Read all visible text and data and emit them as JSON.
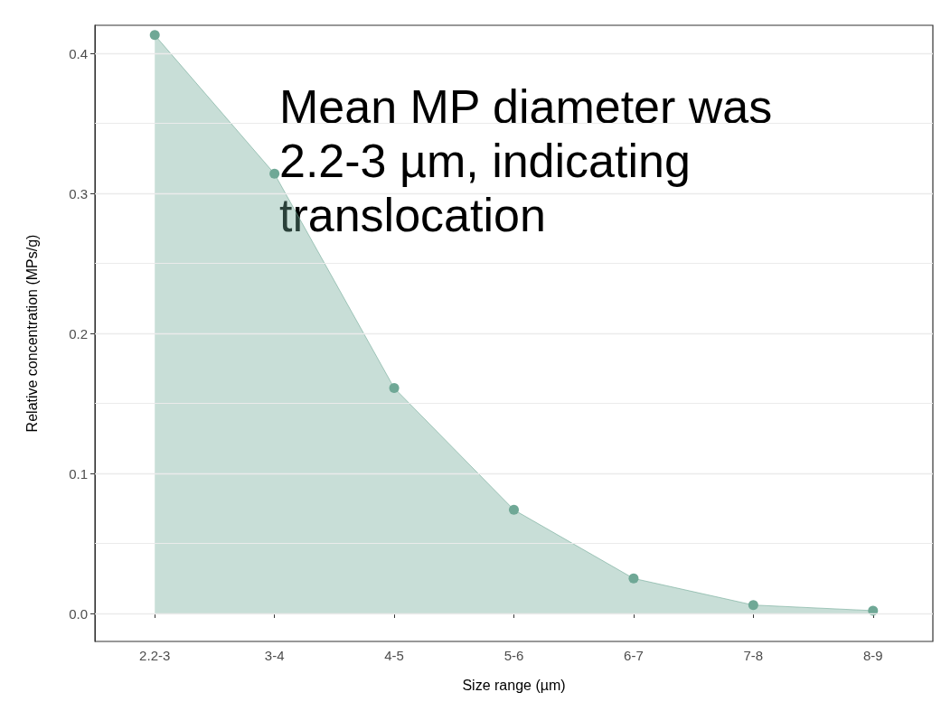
{
  "chart_data": {
    "type": "area",
    "xlabel": "Size range (µm)",
    "ylabel": "Relative concentration (MPs/g)",
    "categories": [
      "2.2-3",
      "3-4",
      "4-5",
      "5-6",
      "6-7",
      "7-8",
      "8-9"
    ],
    "values": [
      0.413,
      0.314,
      0.161,
      0.074,
      0.025,
      0.006,
      0.002
    ],
    "color": "#6fa896",
    "ylim": [
      -0.02,
      0.42
    ],
    "yticks": [
      {
        "value": 0,
        "label": "0.0"
      },
      0.1,
      0.2,
      0.3,
      0.4
    ],
    "grid": "y",
    "marker": "circle",
    "annotations": [
      "Mean MP diameter was 2.2-3 µm, indicating translocation"
    ]
  }
}
